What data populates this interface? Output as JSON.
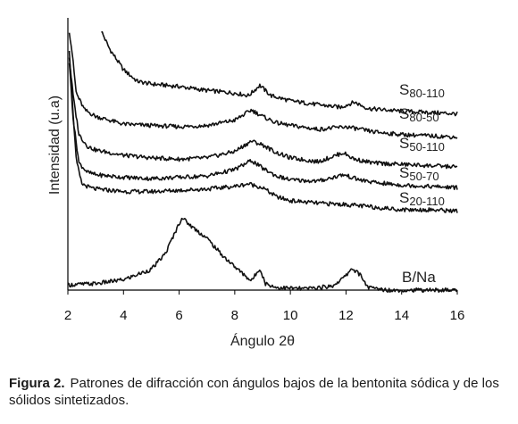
{
  "chart_data": {
    "type": "line",
    "xlabel": "Ángulo 2θ",
    "ylabel": "Intensidad (u.a)",
    "xlim": [
      2,
      16
    ],
    "x_ticks": [
      "2",
      "4",
      "6",
      "8",
      "10",
      "12",
      "14",
      "16"
    ],
    "grid": false,
    "y_ticks_shown": false,
    "series": [
      {
        "name": "S80-110",
        "label_main": "S",
        "label_sub": "80-110",
        "points": [
          [
            3.2,
            10.0
          ],
          [
            3.5,
            9.3
          ],
          [
            4.0,
            8.5
          ],
          [
            4.5,
            8.05
          ],
          [
            5.0,
            7.95
          ],
          [
            6.0,
            7.85
          ],
          [
            7.0,
            7.7
          ],
          [
            8.0,
            7.6
          ],
          [
            8.5,
            7.5
          ],
          [
            8.9,
            7.9
          ],
          [
            9.3,
            7.5
          ],
          [
            10.0,
            7.3
          ],
          [
            11.0,
            7.15
          ],
          [
            11.8,
            7.05
          ],
          [
            12.3,
            7.25
          ],
          [
            12.8,
            7.0
          ],
          [
            14.0,
            6.9
          ],
          [
            15.0,
            6.85
          ],
          [
            16.0,
            6.8
          ]
        ]
      },
      {
        "name": "S80-50",
        "label_main": "S",
        "label_sub": "80-50",
        "points": [
          [
            2.05,
            10.0
          ],
          [
            2.15,
            9.2
          ],
          [
            2.3,
            7.6
          ],
          [
            2.6,
            6.95
          ],
          [
            3.0,
            6.7
          ],
          [
            4.0,
            6.4
          ],
          [
            5.0,
            6.35
          ],
          [
            6.0,
            6.3
          ],
          [
            7.0,
            6.35
          ],
          [
            8.0,
            6.55
          ],
          [
            8.6,
            6.95
          ],
          [
            9.0,
            6.7
          ],
          [
            9.5,
            6.45
          ],
          [
            10.0,
            6.35
          ],
          [
            11.0,
            6.2
          ],
          [
            12.0,
            6.3
          ],
          [
            12.5,
            6.2
          ],
          [
            13.0,
            6.1
          ],
          [
            14.0,
            6.0
          ],
          [
            15.0,
            5.95
          ],
          [
            16.0,
            5.9
          ]
        ]
      },
      {
        "name": "S50-110",
        "label_main": "S",
        "label_sub": "50-110",
        "points": [
          [
            2.05,
            9.0
          ],
          [
            2.2,
            7.4
          ],
          [
            2.4,
            6.0
          ],
          [
            2.7,
            5.55
          ],
          [
            3.0,
            5.4
          ],
          [
            4.0,
            5.2
          ],
          [
            5.0,
            5.1
          ],
          [
            6.0,
            5.05
          ],
          [
            7.0,
            5.1
          ],
          [
            8.0,
            5.35
          ],
          [
            8.6,
            5.75
          ],
          [
            9.0,
            5.6
          ],
          [
            9.5,
            5.3
          ],
          [
            10.0,
            5.1
          ],
          [
            11.0,
            4.95
          ],
          [
            11.9,
            5.3
          ],
          [
            12.3,
            5.05
          ],
          [
            13.0,
            4.9
          ],
          [
            14.0,
            4.85
          ],
          [
            15.0,
            4.8
          ],
          [
            16.0,
            4.75
          ]
        ]
      },
      {
        "name": "S50-70",
        "label_main": "S",
        "label_sub": "50-70",
        "points": [
          [
            2.05,
            8.8
          ],
          [
            2.2,
            6.5
          ],
          [
            2.4,
            4.9
          ],
          [
            2.7,
            4.55
          ],
          [
            3.0,
            4.45
          ],
          [
            4.0,
            4.35
          ],
          [
            5.0,
            4.3
          ],
          [
            6.0,
            4.35
          ],
          [
            7.0,
            4.4
          ],
          [
            8.0,
            4.65
          ],
          [
            8.6,
            5.0
          ],
          [
            9.0,
            4.7
          ],
          [
            9.5,
            4.4
          ],
          [
            10.0,
            4.25
          ],
          [
            11.0,
            4.2
          ],
          [
            11.9,
            4.45
          ],
          [
            12.5,
            4.25
          ],
          [
            13.0,
            4.15
          ],
          [
            14.0,
            4.05
          ],
          [
            15.0,
            4.0
          ],
          [
            16.0,
            3.95
          ]
        ]
      },
      {
        "name": "S20-110",
        "label_main": "S",
        "label_sub": "20-110",
        "points": [
          [
            2.05,
            9.3
          ],
          [
            2.15,
            7.5
          ],
          [
            2.3,
            5.0
          ],
          [
            2.5,
            4.1
          ],
          [
            2.8,
            3.95
          ],
          [
            3.0,
            3.9
          ],
          [
            4.0,
            3.8
          ],
          [
            5.0,
            3.8
          ],
          [
            6.0,
            3.85
          ],
          [
            7.0,
            3.9
          ],
          [
            8.0,
            4.0
          ],
          [
            8.5,
            4.1
          ],
          [
            9.0,
            3.95
          ],
          [
            9.5,
            3.6
          ],
          [
            10.0,
            3.45
          ],
          [
            11.0,
            3.35
          ],
          [
            12.0,
            3.3
          ],
          [
            13.0,
            3.2
          ],
          [
            14.0,
            3.1
          ],
          [
            15.0,
            3.1
          ],
          [
            16.0,
            3.05
          ]
        ]
      },
      {
        "name": "B/Na",
        "label_main": "B/Na",
        "label_sub": "",
        "points": [
          [
            2.0,
            0.2
          ],
          [
            3.0,
            0.25
          ],
          [
            4.0,
            0.4
          ],
          [
            5.0,
            0.8
          ],
          [
            5.5,
            1.4
          ],
          [
            5.8,
            2.1
          ],
          [
            6.1,
            2.8
          ],
          [
            6.4,
            2.5
          ],
          [
            7.0,
            2.0
          ],
          [
            7.5,
            1.4
          ],
          [
            8.0,
            0.9
          ],
          [
            8.6,
            0.35
          ],
          [
            8.9,
            0.85
          ],
          [
            9.1,
            0.25
          ],
          [
            9.5,
            0.1
          ],
          [
            10.5,
            0.05
          ],
          [
            11.5,
            0.15
          ],
          [
            12.0,
            0.55
          ],
          [
            12.2,
            0.85
          ],
          [
            12.5,
            0.6
          ],
          [
            12.8,
            0.1
          ],
          [
            13.5,
            0.0
          ],
          [
            14.5,
            0.0
          ],
          [
            15.5,
            0.0
          ],
          [
            16.0,
            0.0
          ]
        ]
      }
    ]
  },
  "caption": {
    "label": "Figura 2.",
    "text": "Patrones de difracción con ángulos bajos de la bentonita sódica y de los sólidos sintetizados."
  }
}
